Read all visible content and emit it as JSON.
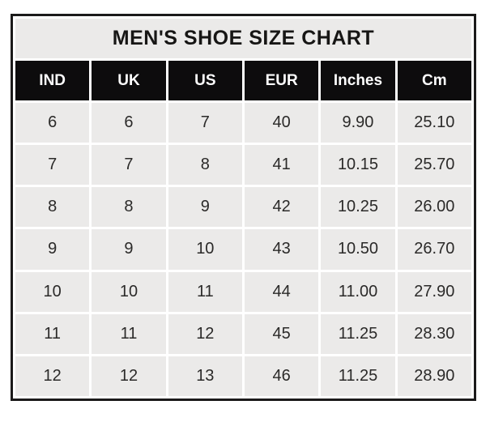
{
  "chart_data": {
    "type": "table",
    "title": "MEN'S SHOE SIZE CHART",
    "columns": [
      "IND",
      "UK",
      "US",
      "EUR",
      "Inches",
      "Cm"
    ],
    "rows": [
      [
        "6",
        "6",
        "7",
        "40",
        "9.90",
        "25.10"
      ],
      [
        "7",
        "7",
        "8",
        "41",
        "10.15",
        "25.70"
      ],
      [
        "8",
        "8",
        "9",
        "42",
        "10.25",
        "26.00"
      ],
      [
        "9",
        "9",
        "10",
        "43",
        "10.50",
        "26.70"
      ],
      [
        "10",
        "10",
        "11",
        "44",
        "11.00",
        "27.90"
      ],
      [
        "11",
        "11",
        "12",
        "45",
        "11.25",
        "28.30"
      ],
      [
        "12",
        "12",
        "13",
        "46",
        "11.25",
        "28.90"
      ]
    ]
  },
  "colors": {
    "header_bg": "#0d0c0d",
    "cell_bg": "#ebeae9",
    "border": "#1b1a1a",
    "cell_text": "#2b2a29",
    "page_bg": "#ffffff"
  }
}
